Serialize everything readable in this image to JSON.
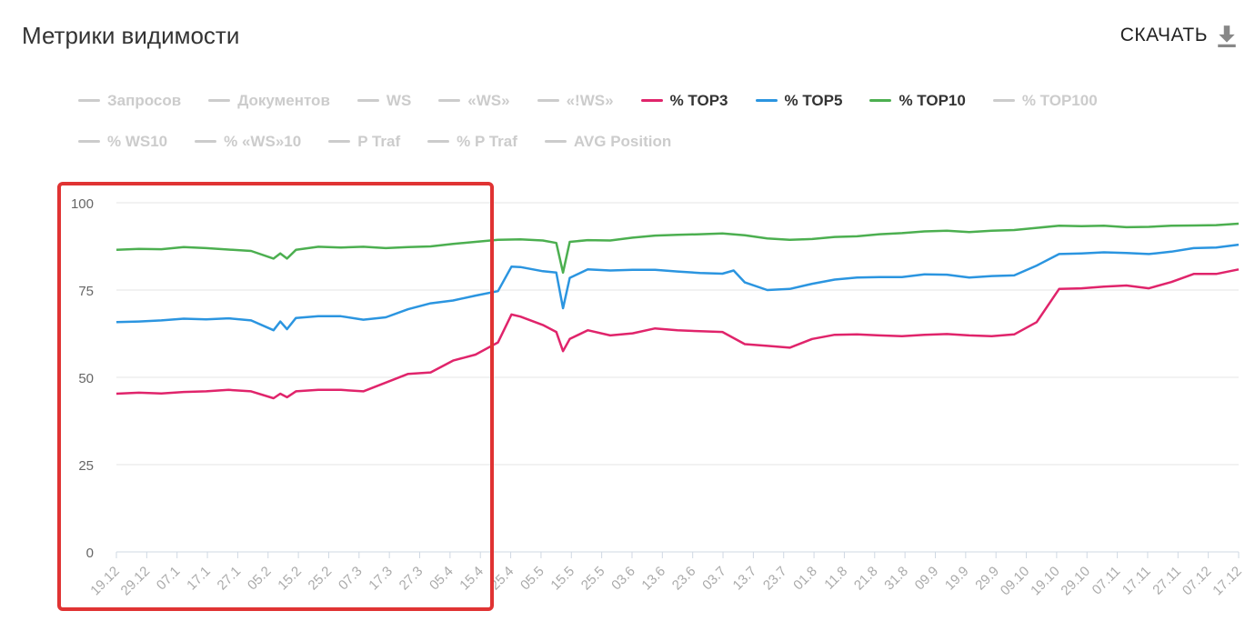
{
  "header": {
    "title": "Метрики видимости",
    "download_label": "СКАЧАТЬ"
  },
  "legend": {
    "rows": [
      [
        {
          "label": "Запросов",
          "active": false
        },
        {
          "label": "Документов",
          "active": false
        },
        {
          "label": "WS",
          "active": false
        },
        {
          "label": "«WS»",
          "active": false
        },
        {
          "label": "«!WS»",
          "active": false
        },
        {
          "label": "% TOP3",
          "active": true,
          "color": "#e0246b"
        },
        {
          "label": "% TOP5",
          "active": true,
          "color": "#2b95e0"
        },
        {
          "label": "% TOP10",
          "active": true,
          "color": "#4caf50"
        },
        {
          "label": "% TOP100",
          "active": false
        }
      ],
      [
        {
          "label": "% WS10",
          "active": false
        },
        {
          "label": "% «WS»10",
          "active": false
        },
        {
          "label": "P Traf",
          "active": false
        },
        {
          "label": "% P Traf",
          "active": false
        },
        {
          "label": "AVG Position",
          "active": false
        }
      ]
    ]
  },
  "chart_data": {
    "type": "line",
    "ylim": [
      0,
      100
    ],
    "yticks": [
      0,
      25,
      50,
      75,
      100
    ],
    "grid": true,
    "x_tick_labels": [
      "19.12",
      "29.12",
      "07.1",
      "17.1",
      "27.1",
      "05.2",
      "15.2",
      "25.2",
      "07.3",
      "17.3",
      "27.3",
      "05.4",
      "15.4",
      "25.4",
      "05.5",
      "15.5",
      "25.5",
      "03.6",
      "13.6",
      "23.6",
      "03.7",
      "13.7",
      "23.7",
      "01.8",
      "11.8",
      "21.8",
      "31.8",
      "09.9",
      "19.9",
      "29.9",
      "09.10",
      "19.10",
      "29.10",
      "07.11",
      "17.11",
      "27.11",
      "07.12",
      "17.12"
    ],
    "series": [
      {
        "name": "% TOP10",
        "color": "#4caf50",
        "points": [
          [
            0,
            86.5
          ],
          [
            1,
            86.8
          ],
          [
            2,
            86.7
          ],
          [
            3,
            87.3
          ],
          [
            4,
            87.0
          ],
          [
            5,
            86.6
          ],
          [
            6,
            86.2
          ],
          [
            7,
            84.0
          ],
          [
            7.3,
            85.5
          ],
          [
            7.6,
            84.0
          ],
          [
            8,
            86.5
          ],
          [
            9,
            87.4
          ],
          [
            10,
            87.2
          ],
          [
            11,
            87.4
          ],
          [
            12,
            87.0
          ],
          [
            13,
            87.3
          ],
          [
            14,
            87.5
          ],
          [
            15,
            88.2
          ],
          [
            16,
            88.8
          ],
          [
            17,
            89.4
          ],
          [
            18,
            89.5
          ],
          [
            19,
            89.2
          ],
          [
            19.6,
            88.5
          ],
          [
            19.9,
            80.0
          ],
          [
            20.2,
            88.8
          ],
          [
            21,
            89.3
          ],
          [
            22,
            89.2
          ],
          [
            23,
            90.0
          ],
          [
            24,
            90.6
          ],
          [
            25,
            90.8
          ],
          [
            26,
            91.0
          ],
          [
            27,
            91.2
          ],
          [
            28,
            90.7
          ],
          [
            29,
            89.8
          ],
          [
            30,
            89.4
          ],
          [
            31,
            89.6
          ],
          [
            32,
            90.2
          ],
          [
            33,
            90.4
          ],
          [
            34,
            91.0
          ],
          [
            35,
            91.3
          ],
          [
            36,
            91.8
          ],
          [
            37,
            92.0
          ],
          [
            38,
            91.6
          ],
          [
            39,
            92.0
          ],
          [
            40,
            92.2
          ],
          [
            41,
            92.8
          ],
          [
            42,
            93.4
          ],
          [
            43,
            93.3
          ],
          [
            44,
            93.4
          ],
          [
            45,
            93.0
          ],
          [
            46,
            93.1
          ],
          [
            47,
            93.4
          ],
          [
            48,
            93.5
          ],
          [
            49,
            93.6
          ],
          [
            50,
            94.0
          ]
        ]
      },
      {
        "name": "% TOP5",
        "color": "#2b95e0",
        "points": [
          [
            0,
            65.8
          ],
          [
            1,
            66.0
          ],
          [
            2,
            66.3
          ],
          [
            3,
            66.8
          ],
          [
            4,
            66.6
          ],
          [
            5,
            66.9
          ],
          [
            6,
            66.3
          ],
          [
            7,
            63.5
          ],
          [
            7.3,
            66.0
          ],
          [
            7.6,
            63.8
          ],
          [
            8,
            67.0
          ],
          [
            9,
            67.5
          ],
          [
            10,
            67.5
          ],
          [
            11,
            66.5
          ],
          [
            12,
            67.2
          ],
          [
            13,
            69.5
          ],
          [
            14,
            71.2
          ],
          [
            15,
            72.0
          ],
          [
            16,
            73.4
          ],
          [
            17,
            74.7
          ],
          [
            17.6,
            81.7
          ],
          [
            18,
            81.6
          ],
          [
            19,
            80.4
          ],
          [
            19.6,
            80.0
          ],
          [
            19.9,
            69.8
          ],
          [
            20.2,
            78.5
          ],
          [
            21,
            80.9
          ],
          [
            22,
            80.6
          ],
          [
            23,
            80.8
          ],
          [
            24,
            80.8
          ],
          [
            25,
            80.3
          ],
          [
            26,
            79.9
          ],
          [
            27,
            79.7
          ],
          [
            27.5,
            80.6
          ],
          [
            28,
            77.2
          ],
          [
            29,
            75.0
          ],
          [
            30,
            75.3
          ],
          [
            31,
            76.8
          ],
          [
            32,
            78.0
          ],
          [
            33,
            78.6
          ],
          [
            34,
            78.7
          ],
          [
            35,
            78.7
          ],
          [
            36,
            79.5
          ],
          [
            37,
            79.4
          ],
          [
            38,
            78.6
          ],
          [
            39,
            79.0
          ],
          [
            40,
            79.2
          ],
          [
            41,
            82.0
          ],
          [
            42,
            85.3
          ],
          [
            43,
            85.5
          ],
          [
            44,
            85.8
          ],
          [
            45,
            85.6
          ],
          [
            46,
            85.3
          ],
          [
            47,
            86.0
          ],
          [
            48,
            87.0
          ],
          [
            49,
            87.2
          ],
          [
            50,
            88.0
          ]
        ]
      },
      {
        "name": "% TOP3",
        "color": "#e0246b",
        "points": [
          [
            0,
            45.3
          ],
          [
            1,
            45.6
          ],
          [
            2,
            45.4
          ],
          [
            3,
            45.8
          ],
          [
            4,
            46.0
          ],
          [
            5,
            46.4
          ],
          [
            6,
            46.0
          ],
          [
            7,
            44.0
          ],
          [
            7.3,
            45.3
          ],
          [
            7.6,
            44.3
          ],
          [
            8,
            46.0
          ],
          [
            9,
            46.4
          ],
          [
            10,
            46.4
          ],
          [
            11,
            46.0
          ],
          [
            12,
            48.5
          ],
          [
            13,
            51.0
          ],
          [
            14,
            51.4
          ],
          [
            15,
            54.8
          ],
          [
            16,
            56.5
          ],
          [
            17,
            60.0
          ],
          [
            17.6,
            68.0
          ],
          [
            18,
            67.4
          ],
          [
            19,
            65.0
          ],
          [
            19.6,
            63.0
          ],
          [
            19.9,
            57.5
          ],
          [
            20.2,
            61.0
          ],
          [
            21,
            63.5
          ],
          [
            22,
            62.0
          ],
          [
            23,
            62.6
          ],
          [
            24,
            64.0
          ],
          [
            25,
            63.5
          ],
          [
            26,
            63.2
          ],
          [
            27,
            63.0
          ],
          [
            28,
            59.5
          ],
          [
            29,
            59.0
          ],
          [
            30,
            58.5
          ],
          [
            31,
            61.0
          ],
          [
            32,
            62.2
          ],
          [
            33,
            62.3
          ],
          [
            34,
            62.0
          ],
          [
            35,
            61.8
          ],
          [
            36,
            62.2
          ],
          [
            37,
            62.4
          ],
          [
            38,
            62.0
          ],
          [
            39,
            61.8
          ],
          [
            40,
            62.3
          ],
          [
            41,
            65.8
          ],
          [
            42,
            75.3
          ],
          [
            43,
            75.5
          ],
          [
            44,
            76.0
          ],
          [
            45,
            76.3
          ],
          [
            46,
            75.5
          ],
          [
            47,
            77.3
          ],
          [
            48,
            79.6
          ],
          [
            49,
            79.6
          ],
          [
            50,
            80.9
          ]
        ]
      }
    ]
  }
}
